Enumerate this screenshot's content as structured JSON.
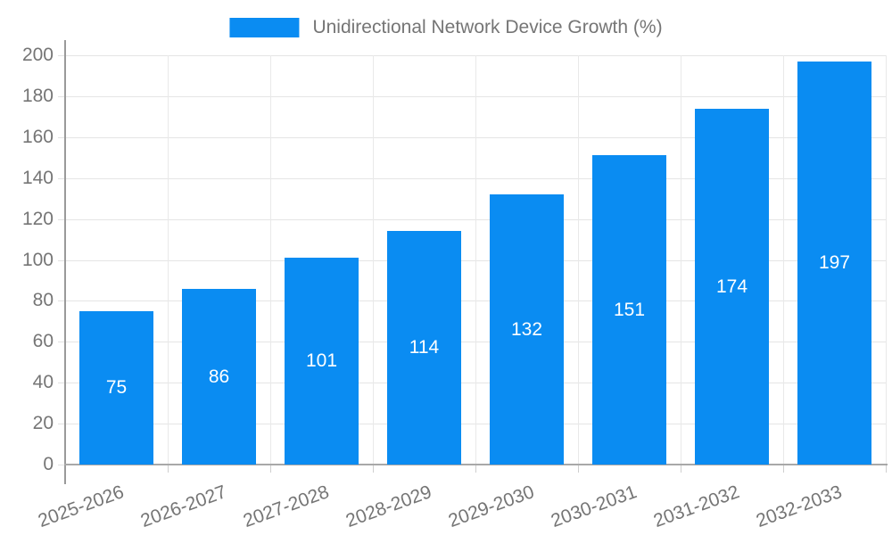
{
  "legend": {
    "items": [
      {
        "label": "Unidirectional Network Device Growth (%)",
        "color": "#0a8cf2"
      }
    ]
  },
  "chart_data": {
    "type": "bar",
    "title": "",
    "xlabel": "",
    "ylabel": "",
    "categories": [
      "2025-2026",
      "2026-2027",
      "2027-2028",
      "2028-2029",
      "2029-2030",
      "2030-2031",
      "2031-2032",
      "2032-2033"
    ],
    "series": [
      {
        "name": "Unidirectional Network Device Growth (%)",
        "color": "#0a8cf2",
        "values": [
          75,
          86,
          101,
          114,
          132,
          151,
          174,
          197
        ]
      }
    ],
    "value_labels": {
      "shown": true,
      "color": "#ffffff",
      "position": "center-of-bar"
    },
    "ylim": [
      0,
      200
    ],
    "ytick_step": 20,
    "grid": true,
    "legend_position": "top-center",
    "x_label_rotation_deg": -20
  },
  "style": {
    "background": "#ffffff",
    "bar_color": "#0a8cf2",
    "tick_label_color": "#757575",
    "legend_text_color": "#757575",
    "gridline_color": "#e5e5e5",
    "axis_line_color": "#9a9a9a",
    "value_label_color": "#ffffff"
  }
}
